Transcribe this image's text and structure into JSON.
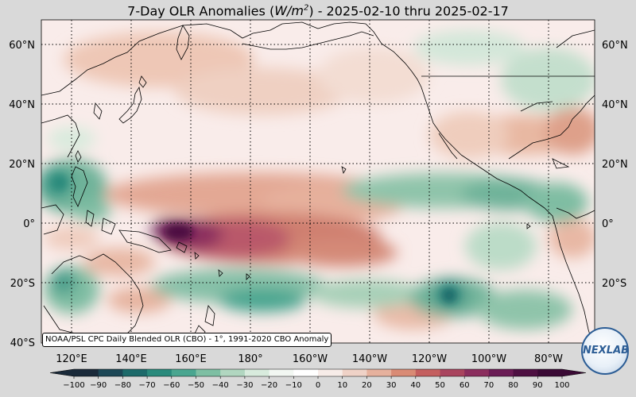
{
  "title": {
    "prefix": "7-Day OLR Anomalies (",
    "unit_base": "W/m",
    "unit_exp": "2",
    "suffix": ") - 2025-02-10 thru 2025-02-17"
  },
  "source_note": "NOAA/PSL CPC Daily Blended OLR (CBO) - 1°, 1991-2020 CBO Anomaly",
  "logo": {
    "text": "NEXLAB",
    "icon": "nexlab-globe-logo"
  },
  "map": {
    "longitude_labels": [
      "120°E",
      "140°E",
      "160°E",
      "180°",
      "160°W",
      "140°W",
      "120°W",
      "100°W",
      "80°W"
    ],
    "latitude_labels": [
      "60°N",
      "40°N",
      "20°N",
      "0°",
      "20°S",
      "40°S"
    ]
  },
  "colorbar": {
    "ticks": [
      "−100",
      "−90",
      "−80",
      "−70",
      "−60",
      "−50",
      "−40",
      "−30",
      "−20",
      "−10",
      "0",
      "10",
      "20",
      "30",
      "40",
      "50",
      "60",
      "70",
      "80",
      "90",
      "100"
    ],
    "colors": [
      "#1a2a3a",
      "#1d4756",
      "#1d6a6a",
      "#2a8a7c",
      "#4aa690",
      "#7ebfa3",
      "#b1d6c0",
      "#d8ebdd",
      "#f2f7f2",
      "#ffffff",
      "#f7ece8",
      "#efd2c7",
      "#e6b19d",
      "#d98b75",
      "#c45f5f",
      "#a9445e",
      "#8b2e5e",
      "#6a1c55",
      "#4e1042",
      "#3a0a35"
    ]
  }
}
